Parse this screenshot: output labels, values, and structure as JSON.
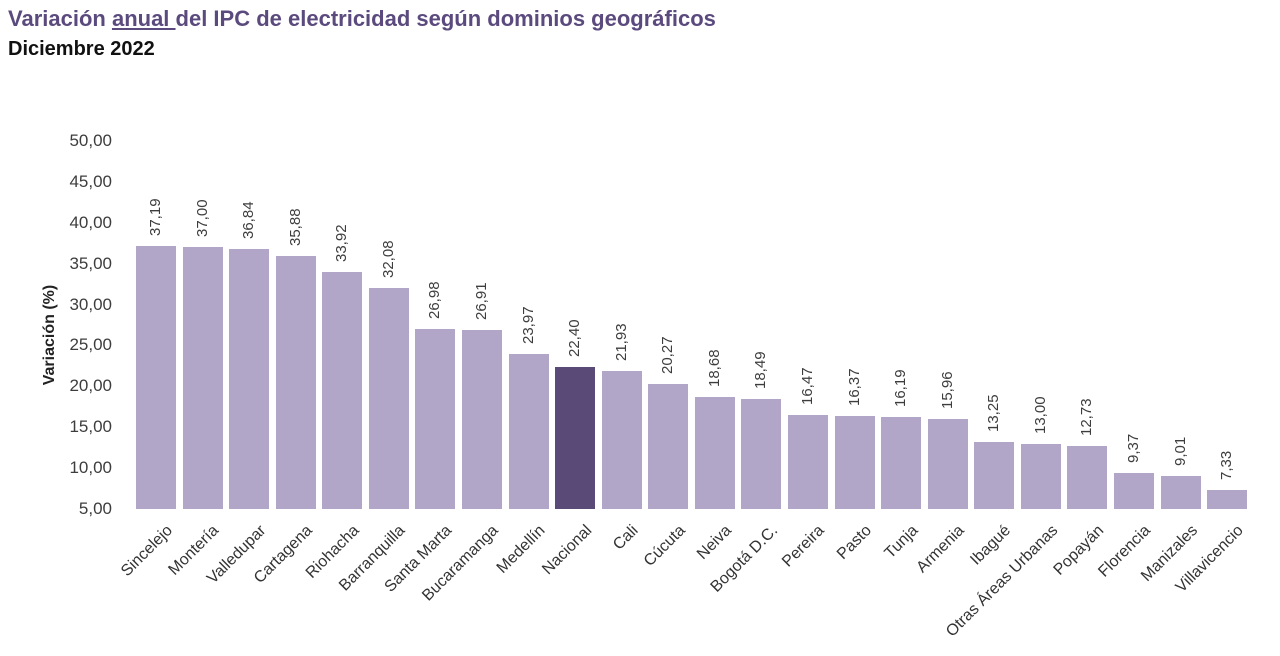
{
  "header": {
    "title_prefix": "Variación ",
    "title_underline": "anual ",
    "title_suffix": "del IPC de electricidad según dominios geográficos",
    "subtitle": "Diciembre 2022"
  },
  "colors": {
    "title": "#5b4a7e",
    "bar": "#b1a6c7",
    "bar_highlight": "#5a4a78",
    "label_text": "#3d3d3d"
  },
  "chart_data": {
    "type": "bar",
    "title": "Variación anual del IPC de electricidad según dominios geográficos",
    "subtitle": "Diciembre 2022",
    "xlabel": "",
    "ylabel": "Variación (%)",
    "ylim": [
      5,
      50
    ],
    "grid": false,
    "legend_position": "none",
    "yticks": [
      50,
      45,
      40,
      35,
      30,
      25,
      20,
      15,
      10,
      5
    ],
    "ytick_labels": [
      "50,00",
      "45,00",
      "40,00",
      "35,00",
      "30,00",
      "25,00",
      "20,00",
      "15,00",
      "10,00",
      "5,00"
    ],
    "categories": [
      "Sincelejo",
      "Montería",
      "Valledupar",
      "Cartagena",
      "Riohacha",
      "Barranquilla",
      "Santa Marta",
      "Bucaramanga",
      "Medellín",
      "Nacional",
      "Cali",
      "Cúcuta",
      "Neiva",
      "Bogotá D.C.",
      "Pereira",
      "Pasto",
      "Tunja",
      "Armenia",
      "Ibagué",
      "Otras Áreas Urbanas",
      "Popayán",
      "Florencia",
      "Manizales",
      "Villavicencio"
    ],
    "values": [
      37.19,
      37.0,
      36.84,
      35.88,
      33.92,
      32.08,
      26.98,
      26.91,
      23.97,
      22.4,
      21.93,
      20.27,
      18.68,
      18.49,
      16.47,
      16.37,
      16.19,
      15.96,
      13.25,
      13.0,
      12.73,
      9.37,
      9.01,
      7.33
    ],
    "value_labels": [
      "37,19",
      "37,00",
      "36,84",
      "35,88",
      "33,92",
      "32,08",
      "26,98",
      "26,91",
      "23,97",
      "22,40",
      "21,93",
      "20,27",
      "18,68",
      "18,49",
      "16,47",
      "16,37",
      "16,19",
      "15,96",
      "13,25",
      "13,00",
      "12,73",
      "9,37",
      "9,01",
      "7,33"
    ],
    "highlight_category": "Nacional",
    "highlight_index": 9
  }
}
